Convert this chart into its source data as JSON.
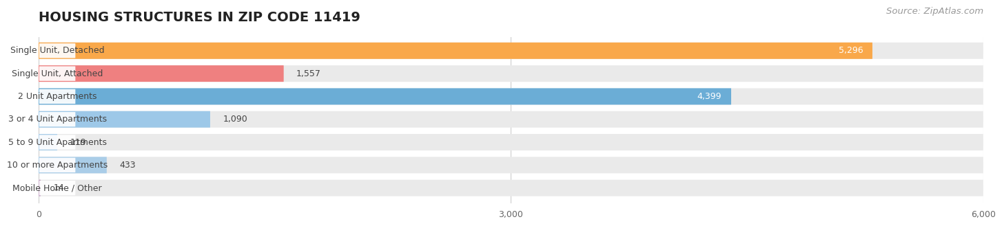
{
  "title": "HOUSING STRUCTURES IN ZIP CODE 11419",
  "source": "Source: ZipAtlas.com",
  "categories": [
    "Single Unit, Detached",
    "Single Unit, Attached",
    "2 Unit Apartments",
    "3 or 4 Unit Apartments",
    "5 to 9 Unit Apartments",
    "10 or more Apartments",
    "Mobile Home / Other"
  ],
  "values": [
    5296,
    1557,
    4399,
    1090,
    119,
    433,
    14
  ],
  "bar_colors": [
    "#F9A84A",
    "#EF8080",
    "#6BADD6",
    "#9DC8E8",
    "#AACDE8",
    "#AACDE8",
    "#C8A8C8"
  ],
  "bar_bg_color": "#EAEAEA",
  "label_bg_color": "#FFFFFF",
  "xlim": [
    0,
    6000
  ],
  "xticks": [
    0,
    3000,
    6000
  ],
  "title_fontsize": 14,
  "label_fontsize": 9,
  "value_fontsize": 9,
  "source_fontsize": 9.5,
  "background_color": "#FFFFFF",
  "grid_color": "#CCCCCC",
  "text_color": "#444444",
  "source_color": "#999999"
}
